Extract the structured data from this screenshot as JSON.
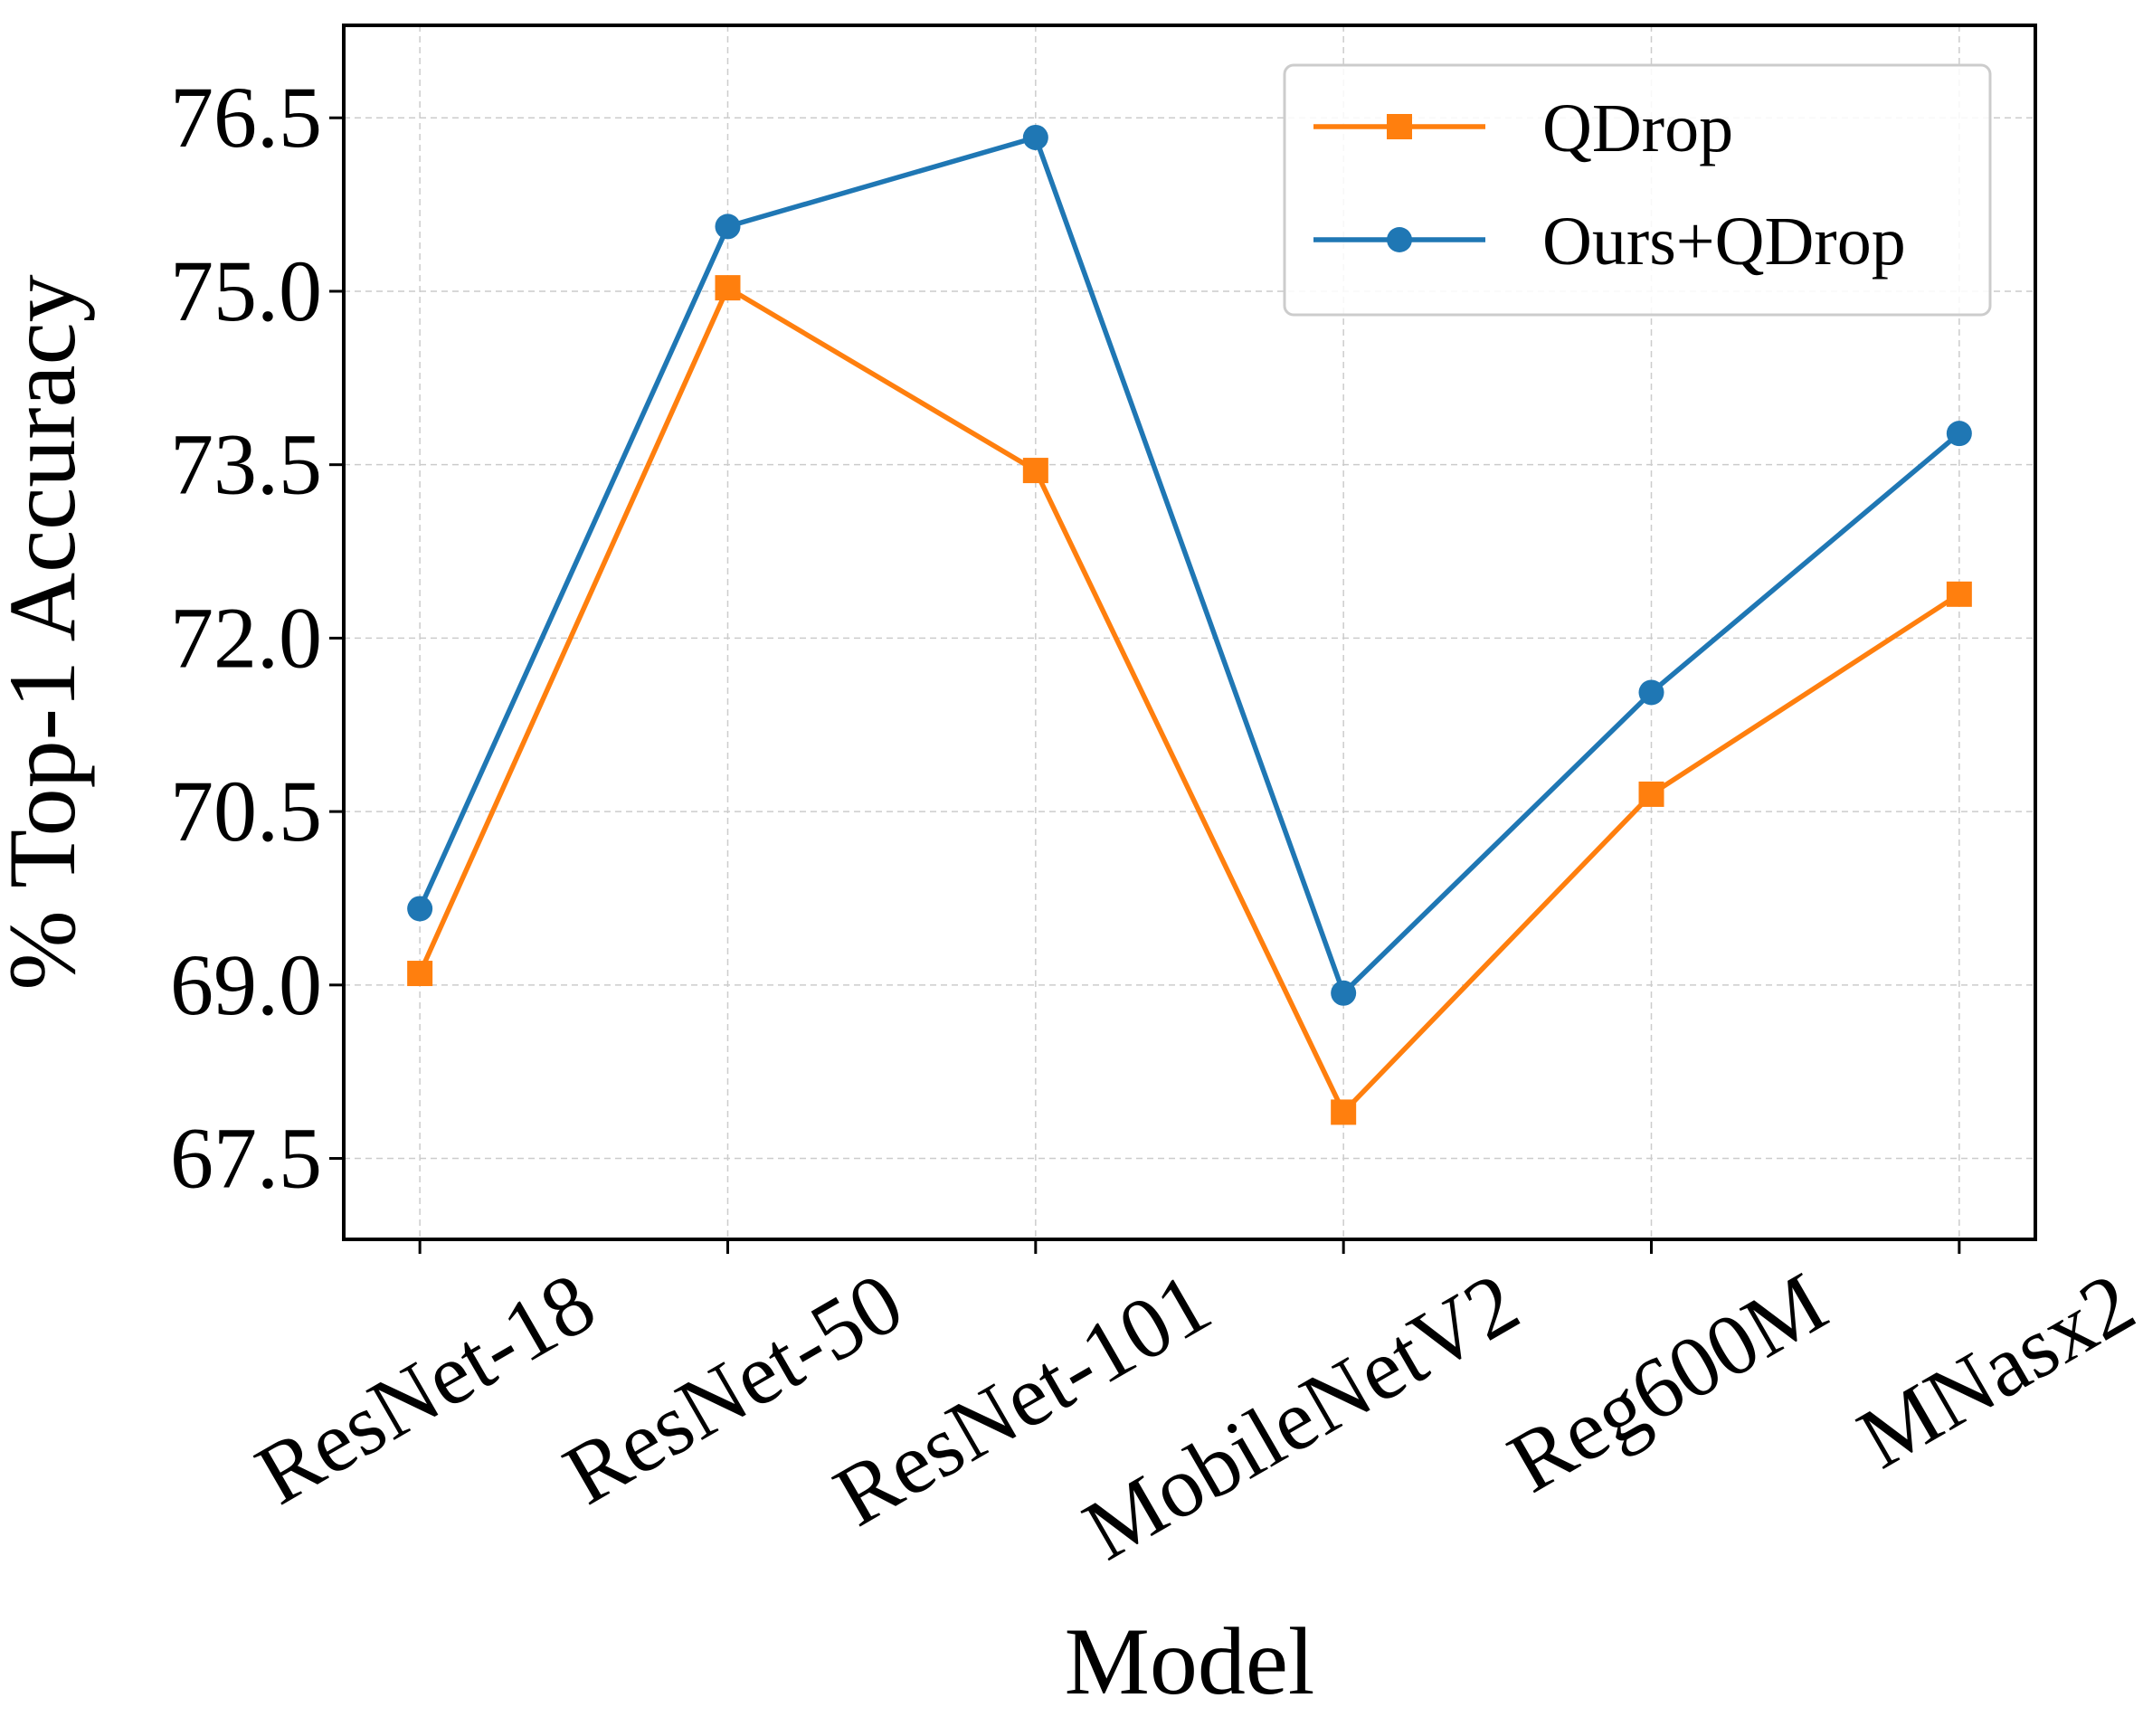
{
  "chart_data": {
    "type": "line",
    "title": "",
    "xlabel": "Model",
    "ylabel": "% Top-1 Accuracy",
    "categories": [
      "ResNet-18",
      "ResNet-50",
      "ResNet-101",
      "MobileNetV2",
      "Reg600M",
      "MNasx2"
    ],
    "series": [
      {
        "name": "QDrop",
        "color": "#ff7f0e",
        "marker": "square",
        "values": [
          69.1,
          75.03,
          73.45,
          67.9,
          70.65,
          72.38
        ]
      },
      {
        "name": "Ours+QDrop",
        "color": "#1f77b4",
        "marker": "circle",
        "values": [
          69.66,
          75.56,
          76.33,
          68.93,
          71.53,
          73.77
        ]
      }
    ],
    "yticks": [
      "67.5",
      "69.0",
      "70.5",
      "72.0",
      "73.5",
      "75.0",
      "76.5"
    ],
    "ylim": [
      66.8,
      77.3
    ],
    "grid": true,
    "legend": "top-right"
  }
}
